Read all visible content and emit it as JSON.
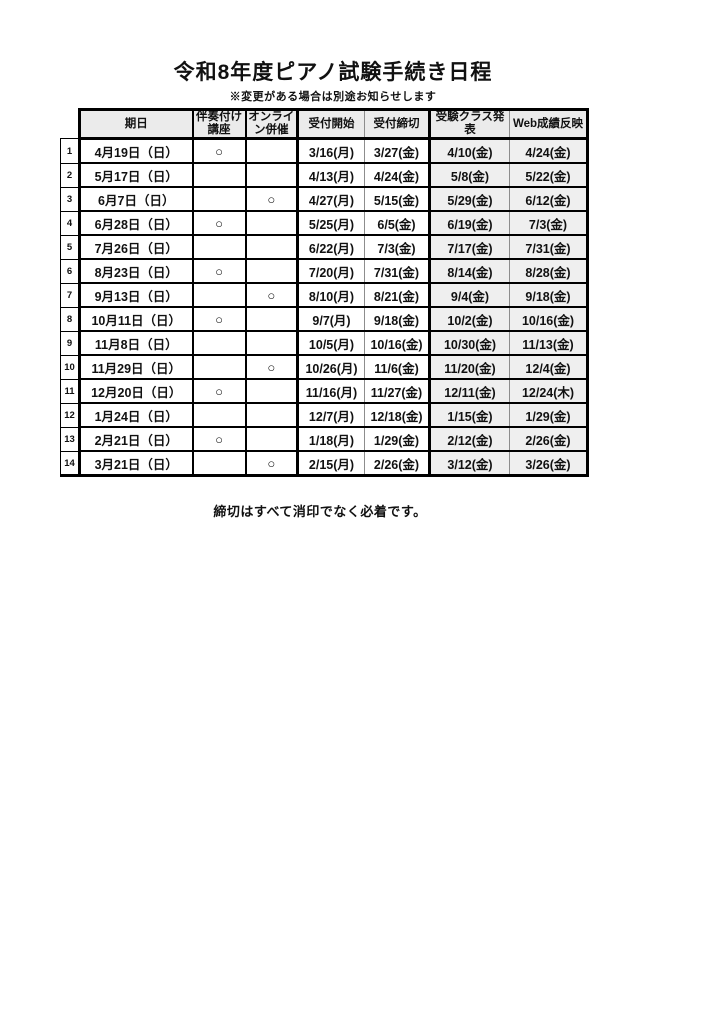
{
  "page": {
    "title": "令和8年度ピアノ試験手続き日程",
    "subtitle": "※変更がある場合は別途お知らせします",
    "footer_note": "締切はすべて消印でなく必着です。"
  },
  "colors": {
    "header_bg": "#ebebeb",
    "result_columns_bg": "#efefef",
    "border": "#000000",
    "thin_divider": "#8d8d8d",
    "page_bg": "#ffffff"
  },
  "table": {
    "headers": [
      "期日",
      "伴奏付け\n講座",
      "オンライ\nン併催",
      "受付開始",
      "受付締切",
      "受験クラス発表",
      "Web成績反映"
    ],
    "column_keys": [
      "no",
      "date",
      "accompaniment",
      "online",
      "start",
      "deadline",
      "class_announce",
      "web_result"
    ],
    "circle_mark": "○",
    "rows": [
      {
        "no": "1",
        "date": "4月19日（日）",
        "accompaniment": "○",
        "online": "",
        "start": "3/16(月)",
        "deadline": "3/27(金)",
        "class_announce": "4/10(金)",
        "web_result": "4/24(金)"
      },
      {
        "no": "2",
        "date": "5月17日（日）",
        "accompaniment": "",
        "online": "",
        "start": "4/13(月)",
        "deadline": "4/24(金)",
        "class_announce": "5/8(金)",
        "web_result": "5/22(金)"
      },
      {
        "no": "3",
        "date": "6月7日（日）",
        "accompaniment": "",
        "online": "○",
        "start": "4/27(月)",
        "deadline": "5/15(金)",
        "class_announce": "5/29(金)",
        "web_result": "6/12(金)"
      },
      {
        "no": "4",
        "date": "6月28日（日）",
        "accompaniment": "○",
        "online": "",
        "start": "5/25(月)",
        "deadline": "6/5(金)",
        "class_announce": "6/19(金)",
        "web_result": "7/3(金)"
      },
      {
        "no": "5",
        "date": "7月26日（日）",
        "accompaniment": "",
        "online": "",
        "start": "6/22(月)",
        "deadline": "7/3(金)",
        "class_announce": "7/17(金)",
        "web_result": "7/31(金)"
      },
      {
        "no": "6",
        "date": "8月23日（日）",
        "accompaniment": "○",
        "online": "",
        "start": "7/20(月)",
        "deadline": "7/31(金)",
        "class_announce": "8/14(金)",
        "web_result": "8/28(金)"
      },
      {
        "no": "7",
        "date": "9月13日（日）",
        "accompaniment": "",
        "online": "○",
        "start": "8/10(月)",
        "deadline": "8/21(金)",
        "class_announce": "9/4(金)",
        "web_result": "9/18(金)"
      },
      {
        "no": "8",
        "date": "10月11日（日）",
        "accompaniment": "○",
        "online": "",
        "start": "9/7(月)",
        "deadline": "9/18(金)",
        "class_announce": "10/2(金)",
        "web_result": "10/16(金)"
      },
      {
        "no": "9",
        "date": "11月8日（日）",
        "accompaniment": "",
        "online": "",
        "start": "10/5(月)",
        "deadline": "10/16(金)",
        "class_announce": "10/30(金)",
        "web_result": "11/13(金)"
      },
      {
        "no": "10",
        "date": "11月29日（日）",
        "accompaniment": "",
        "online": "○",
        "start": "10/26(月)",
        "deadline": "11/6(金)",
        "class_announce": "11/20(金)",
        "web_result": "12/4(金)"
      },
      {
        "no": "11",
        "date": "12月20日（日）",
        "accompaniment": "○",
        "online": "",
        "start": "11/16(月)",
        "deadline": "11/27(金)",
        "class_announce": "12/11(金)",
        "web_result": "12/24(木)"
      },
      {
        "no": "12",
        "date": "1月24日（日）",
        "accompaniment": "",
        "online": "",
        "start": "12/7(月)",
        "deadline": "12/18(金)",
        "class_announce": "1/15(金)",
        "web_result": "1/29(金)"
      },
      {
        "no": "13",
        "date": "2月21日（日）",
        "accompaniment": "○",
        "online": "",
        "start": "1/18(月)",
        "deadline": "1/29(金)",
        "class_announce": "2/12(金)",
        "web_result": "2/26(金)"
      },
      {
        "no": "14",
        "date": "3月21日（日）",
        "accompaniment": "",
        "online": "○",
        "start": "2/15(月)",
        "deadline": "2/26(金)",
        "class_announce": "3/12(金)",
        "web_result": "3/26(金)"
      }
    ]
  }
}
